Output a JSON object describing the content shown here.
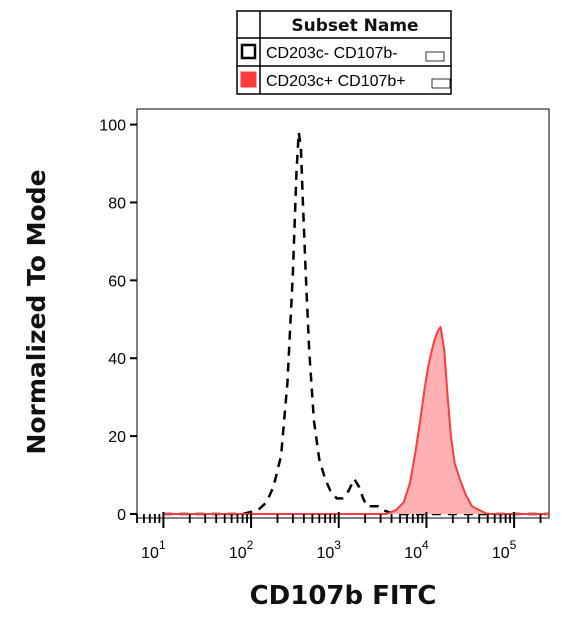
{
  "chart_data": {
    "type": "area",
    "xlabel": "CD107b FITC",
    "ylabel": "Normalized To Mode",
    "xscale": "log",
    "xlim": [
      5,
      250000
    ],
    "ylim": [
      0,
      104
    ],
    "x_ticks": [
      {
        "base": "10",
        "exp": "1",
        "value": 10
      },
      {
        "base": "10",
        "exp": "2",
        "value": 100
      },
      {
        "base": "10",
        "exp": "3",
        "value": 1000
      },
      {
        "base": "10",
        "exp": "4",
        "value": 10000
      },
      {
        "base": "10",
        "exp": "5",
        "value": 100000
      }
    ],
    "y_ticks": [
      0,
      20,
      40,
      60,
      80,
      100
    ],
    "legend": {
      "header": "Subset Name",
      "placement": "top-center",
      "entries": [
        {
          "label": "CD203c- CD107b-",
          "color": "#000000",
          "style": "dashed-unfilled"
        },
        {
          "label": "CD203c+ CD107b+",
          "color": "#ff3b3b",
          "style": "filled"
        }
      ]
    },
    "series": [
      {
        "name": "CD203c- CD107b-",
        "color": "#000000",
        "fill": "none",
        "dash": true,
        "x": [
          10,
          80,
          120,
          150,
          180,
          220,
          260,
          300,
          330,
          350,
          370,
          390,
          420,
          460,
          520,
          600,
          700,
          800,
          950,
          1100,
          1300,
          1500,
          1700,
          1900,
          2100,
          2400,
          2800,
          3200,
          3700,
          4500,
          6000,
          10000,
          100000,
          250000
        ],
        "y": [
          0,
          0,
          1,
          3,
          7,
          15,
          34,
          62,
          88,
          98,
          94,
          80,
          62,
          42,
          24,
          14,
          9,
          6,
          4,
          4,
          6,
          9,
          7,
          4,
          2,
          2,
          2,
          1,
          0.5,
          0,
          0,
          0,
          0,
          0
        ]
      },
      {
        "name": "CD203c+ CD107b+",
        "color": "#ff3b3b",
        "fill": "#ffb0b0",
        "dash": false,
        "x": [
          10,
          2000,
          3500,
          4500,
          5500,
          6500,
          7500,
          8500,
          9500,
          10500,
          11500,
          12500,
          13500,
          14500,
          16000,
          17500,
          19000,
          21000,
          24000,
          28000,
          33000,
          40000,
          50000,
          65000,
          250000
        ],
        "y": [
          0,
          0,
          0,
          1,
          3,
          8,
          16,
          24,
          32,
          38,
          42,
          45,
          47,
          48,
          42,
          30,
          20,
          13,
          9,
          5,
          2,
          1,
          0,
          0,
          0
        ]
      }
    ]
  }
}
